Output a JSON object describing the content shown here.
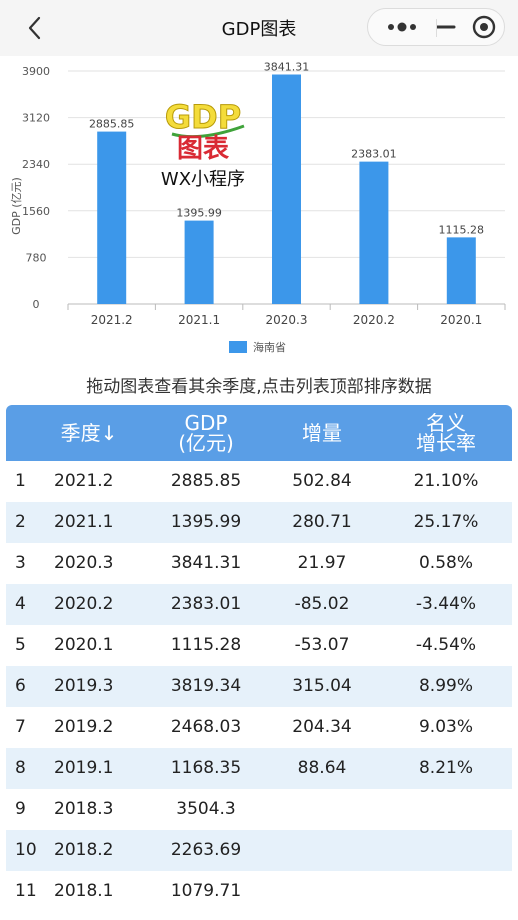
{
  "nav": {
    "title": "GDP图表"
  },
  "hint": "拖动图表查看其余季度,点击列表顶部排序数据",
  "watermark": {
    "line1": "GDP",
    "line2": "图表",
    "line3": "WX小程序"
  },
  "colors": {
    "bar": "#3c97ea",
    "header": "#5a9ee6",
    "row_alt": "#e6f1fa",
    "watermark_yellow": "#f4dc3a",
    "watermark_red": "#d92a34"
  },
  "chart_data": {
    "type": "bar",
    "categories": [
      "2021.2",
      "2021.1",
      "2020.3",
      "2020.2",
      "2020.1"
    ],
    "series": [
      {
        "name": "海南省",
        "values": [
          2885.85,
          1395.99,
          3841.31,
          2383.01,
          1115.28
        ]
      }
    ],
    "value_labels": [
      "2885.85",
      "1395.99",
      "3841.31",
      "2383.01",
      "1115.28"
    ],
    "ylabel": "GDP (亿元)",
    "xlabel": "",
    "yticks": [
      0,
      780,
      1560,
      2340,
      3120,
      3900
    ],
    "ylim": [
      0,
      3900
    ],
    "grid": true,
    "legend_position": "bottom-center"
  },
  "table": {
    "headers": [
      "季度↓",
      "GDP\n(亿元)",
      "增量",
      "名义\n增长率"
    ],
    "rows": [
      [
        "1",
        "2021.2",
        "2885.85",
        "502.84",
        "21.10%"
      ],
      [
        "2",
        "2021.1",
        "1395.99",
        "280.71",
        "25.17%"
      ],
      [
        "3",
        "2020.3",
        "3841.31",
        "21.97",
        "0.58%"
      ],
      [
        "4",
        "2020.2",
        "2383.01",
        "-85.02",
        "-3.44%"
      ],
      [
        "5",
        "2020.1",
        "1115.28",
        "-53.07",
        "-4.54%"
      ],
      [
        "6",
        "2019.3",
        "3819.34",
        "315.04",
        "8.99%"
      ],
      [
        "7",
        "2019.2",
        "2468.03",
        "204.34",
        "9.03%"
      ],
      [
        "8",
        "2019.1",
        "1168.35",
        "88.64",
        "8.21%"
      ],
      [
        "9",
        "2018.3",
        "3504.3",
        "",
        ""
      ],
      [
        "10",
        "2018.2",
        "2263.69",
        "",
        ""
      ],
      [
        "11",
        "2018.1",
        "1079.71",
        "",
        ""
      ]
    ]
  }
}
